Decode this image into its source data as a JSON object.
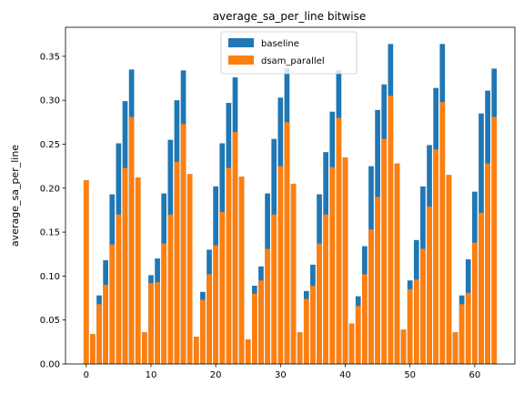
{
  "chart_data": {
    "type": "bar",
    "title": "average_sa_per_line bitwise",
    "xlabel": "",
    "ylabel": "average_sa_per_line",
    "xlim": [
      -3.2,
      66.2
    ],
    "ylim": [
      0,
      0.383
    ],
    "xticks": [
      0,
      10,
      20,
      30,
      40,
      50,
      60
    ],
    "yticks": [
      0.0,
      0.05,
      0.1,
      0.15,
      0.2,
      0.25,
      0.3,
      0.35
    ],
    "ytick_labels": [
      "0.00",
      "0.05",
      "0.10",
      "0.15",
      "0.20",
      "0.25",
      "0.30",
      "0.35"
    ],
    "grid": false,
    "legend_position": "top-center",
    "x": [
      0,
      1,
      2,
      3,
      4,
      5,
      6,
      7,
      8,
      9,
      10,
      11,
      12,
      13,
      14,
      15,
      16,
      17,
      18,
      19,
      20,
      21,
      22,
      23,
      24,
      25,
      26,
      27,
      28,
      29,
      30,
      31,
      32,
      33,
      34,
      35,
      36,
      37,
      38,
      39,
      40,
      41,
      42,
      43,
      44,
      45,
      46,
      47,
      48,
      49,
      50,
      51,
      52,
      53,
      54,
      55,
      56,
      57,
      58,
      59,
      60,
      61,
      62,
      63
    ],
    "series": [
      {
        "name": "baseline",
        "color": "#1f77b4",
        "values": [
          0.209,
          0.034,
          0.078,
          0.118,
          0.193,
          0.251,
          0.299,
          0.335,
          0.212,
          0.036,
          0.101,
          0.12,
          0.194,
          0.255,
          0.3,
          0.334,
          0.216,
          0.031,
          0.082,
          0.13,
          0.202,
          0.251,
          0.297,
          0.326,
          0.213,
          0.028,
          0.089,
          0.111,
          0.194,
          0.256,
          0.303,
          0.337,
          0.205,
          0.036,
          0.083,
          0.113,
          0.193,
          0.241,
          0.287,
          0.334,
          0.235,
          0.046,
          0.077,
          0.134,
          0.225,
          0.289,
          0.318,
          0.364,
          0.228,
          0.039,
          0.095,
          0.141,
          0.202,
          0.249,
          0.314,
          0.364,
          0.215,
          0.036,
          0.078,
          0.119,
          0.196,
          0.285,
          0.311,
          0.336
        ]
      },
      {
        "name": "dsam_parallel",
        "color": "#ff7f0e",
        "values": [
          0.209,
          0.034,
          0.068,
          0.09,
          0.136,
          0.17,
          0.223,
          0.281,
          0.212,
          0.036,
          0.092,
          0.093,
          0.137,
          0.17,
          0.23,
          0.273,
          0.216,
          0.031,
          0.073,
          0.102,
          0.135,
          0.173,
          0.223,
          0.264,
          0.213,
          0.028,
          0.08,
          0.095,
          0.131,
          0.17,
          0.225,
          0.275,
          0.205,
          0.036,
          0.074,
          0.089,
          0.137,
          0.17,
          0.224,
          0.28,
          0.235,
          0.046,
          0.066,
          0.102,
          0.153,
          0.19,
          0.256,
          0.305,
          0.228,
          0.039,
          0.085,
          0.096,
          0.131,
          0.179,
          0.244,
          0.298,
          0.215,
          0.036,
          0.068,
          0.081,
          0.138,
          0.172,
          0.228,
          0.281
        ]
      }
    ]
  }
}
